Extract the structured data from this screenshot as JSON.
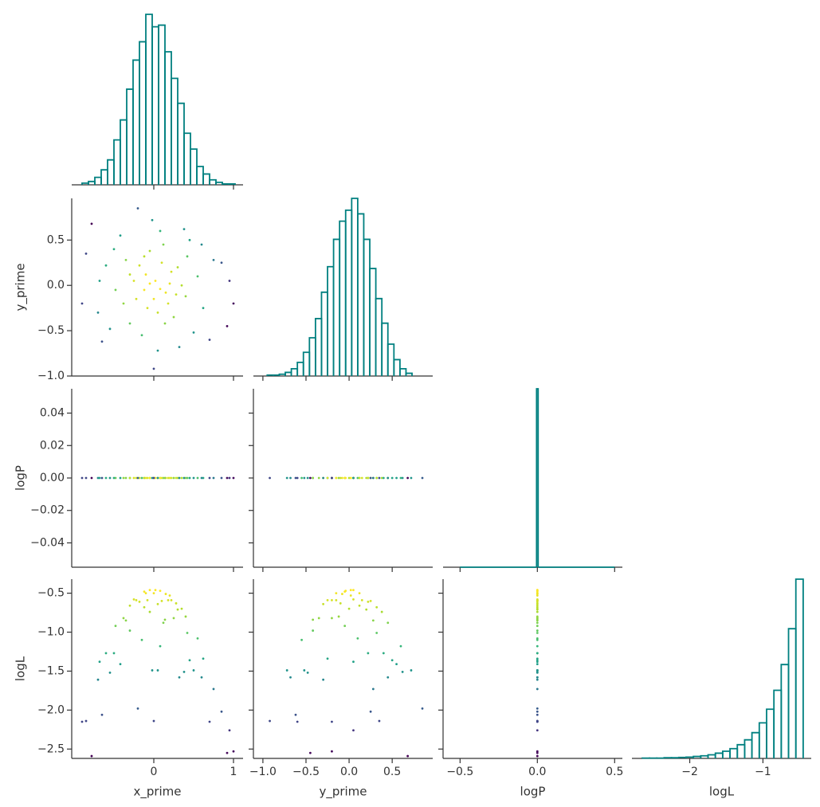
{
  "chart_data": {
    "type": "corner",
    "color": "#008080",
    "colormap": "viridis",
    "variables": [
      {
        "name": "x_prime",
        "values": [
          0.02,
          -0.1,
          0.15,
          -0.22,
          0.3,
          -0.35,
          0.05,
          0.4,
          -0.05,
          -0.48,
          0.55,
          0.12,
          -0.3,
          0.25,
          -0.6,
          0.62,
          -0.15,
          0.08,
          -0.7,
          0.75,
          -0.42,
          0.45,
          -0.55,
          0.5,
          0.2,
          -0.12,
          0.0,
          -0.25,
          0.35,
          0.1,
          -0.18,
          0.22,
          -0.08,
          0.18,
          -0.38,
          0.42,
          -0.02,
          0.05,
          -0.78,
          0.92,
          1.0,
          -0.85,
          0.85,
          -0.2,
          0.0,
          -0.65,
          0.7,
          -0.9,
          0.95,
          0.32,
          -0.05,
          0.08,
          -0.3,
          0.28,
          -0.12,
          0.14,
          0.6,
          -0.5,
          0.38,
          -0.68
        ],
        "xlim": [
          -1.03,
          1.12
        ],
        "xticks": [
          0,
          1
        ],
        "hist": {
          "bins": [
            -0.9,
            -0.82,
            -0.74,
            -0.66,
            -0.58,
            -0.5,
            -0.42,
            -0.34,
            -0.26,
            -0.18,
            -0.1,
            -0.02,
            0.06,
            0.14,
            0.22,
            0.3,
            0.38,
            0.46,
            0.54,
            0.62,
            0.7,
            0.78,
            0.86,
            0.94,
            1.02
          ],
          "counts": [
            2,
            4,
            9,
            18,
            30,
            54,
            78,
            115,
            150,
            172,
            205,
            190,
            192,
            160,
            128,
            98,
            62,
            43,
            22,
            13,
            6,
            3,
            1,
            1
          ]
        }
      },
      {
        "name": "y_prime",
        "values": [
          0.05,
          0.12,
          -0.08,
          -0.15,
          0.2,
          0.28,
          -0.3,
          -0.12,
          0.38,
          -0.05,
          0.1,
          0.45,
          -0.42,
          -0.35,
          0.22,
          -0.25,
          -0.55,
          0.6,
          -0.3,
          0.28,
          0.55,
          0.5,
          -0.48,
          -0.52,
          0.02,
          -0.05,
          -0.15,
          0.05,
          0.0,
          0.25,
          0.22,
          0.15,
          -0.25,
          -0.2,
          -0.2,
          0.32,
          0.72,
          -0.72,
          0.68,
          -0.45,
          -0.2,
          0.35,
          0.25,
          0.85,
          -0.92,
          -0.62,
          -0.6,
          -0.2,
          0.05,
          -0.68,
          0.02,
          -0.04,
          0.12,
          -0.1,
          0.32,
          -0.42,
          0.45,
          0.4,
          0.62,
          0.05
        ],
        "xlim": [
          -1.11,
          0.97
        ],
        "xticks": [
          {
            "value": -1.0,
            "label": "−1.0"
          },
          {
            "value": -0.5,
            "label": "−0.5"
          },
          {
            "value": 0,
            "label": "0.0"
          },
          {
            "value": 0.5,
            "label": "0.5"
          }
        ],
        "ylim": [
          -1.0,
          0.96
        ],
        "yticks": [
          {
            "value": -1.0,
            "label": "−1.0"
          },
          {
            "value": -0.5,
            "label": "−0.5"
          },
          {
            "value": 0,
            "label": "0.0"
          },
          {
            "value": 0.5,
            "label": "0.5"
          }
        ],
        "hist": {
          "bins": [
            -0.95,
            -0.88,
            -0.81,
            -0.74,
            -0.67,
            -0.6,
            -0.53,
            -0.46,
            -0.39,
            -0.32,
            -0.25,
            -0.18,
            -0.11,
            -0.04,
            0.03,
            0.1,
            0.17,
            0.24,
            0.31,
            0.38,
            0.45,
            0.52,
            0.59,
            0.66,
            0.73
          ],
          "counts": [
            1,
            1,
            2,
            4,
            8,
            15,
            26,
            42,
            63,
            92,
            120,
            150,
            170,
            182,
            195,
            178,
            150,
            118,
            85,
            58,
            35,
            18,
            8,
            3
          ]
        }
      },
      {
        "name": "logP",
        "values": [
          0,
          0,
          0,
          0,
          0,
          0,
          0,
          0,
          0,
          0,
          0,
          0,
          0,
          0,
          0,
          0,
          0,
          0,
          0,
          0,
          0,
          0,
          0,
          0,
          0,
          0,
          0,
          0,
          0,
          0,
          0,
          0,
          0,
          0,
          0,
          0,
          0,
          0,
          0,
          0,
          0,
          0,
          0,
          0,
          0,
          0,
          0,
          0,
          0,
          0,
          0,
          0,
          0,
          0,
          0,
          0,
          0,
          0,
          0,
          0
        ],
        "xlim": [
          -0.61,
          0.55
        ],
        "xticks": [
          {
            "value": -0.5,
            "label": "−0.5"
          },
          {
            "value": 0,
            "label": "0.0"
          },
          {
            "value": 0.5,
            "label": "0.5"
          }
        ],
        "ylim": [
          -0.055,
          0.055
        ],
        "yticks": [
          {
            "value": -0.04,
            "label": "−0.04"
          },
          {
            "value": -0.02,
            "label": "−0.02"
          },
          {
            "value": 0,
            "label": "0.00"
          },
          {
            "value": 0.02,
            "label": "0.02"
          },
          {
            "value": 0.04,
            "label": "0.04"
          }
        ],
        "hist": {
          "bins": [
            -0.5,
            -0.005,
            0.005,
            0.5
          ],
          "counts": [
            0,
            2000,
            0
          ]
        }
      },
      {
        "name": "logL",
        "values": [
          -0.46,
          -0.5,
          -0.51,
          -0.59,
          -0.71,
          -0.85,
          -0.64,
          -0.8,
          -0.74,
          -0.92,
          -1.08,
          -0.88,
          -0.98,
          -0.82,
          -1.27,
          -1.34,
          -1.1,
          -1.18,
          -1.61,
          -1.73,
          -1.41,
          -1.36,
          -1.52,
          -1.49,
          -0.53,
          -0.48,
          -0.5,
          -0.58,
          -0.7,
          -0.6,
          -0.61,
          -0.59,
          -0.59,
          -0.59,
          -0.82,
          -1.01,
          -1.49,
          -1.49,
          -2.59,
          -2.55,
          -2.53,
          -2.14,
          -2.02,
          -1.98,
          -2.14,
          -2.06,
          -2.15,
          -2.15,
          -2.26,
          -1.58,
          -0.46,
          -0.47,
          -0.66,
          -0.63,
          -0.68,
          -0.84,
          -1.58,
          -1.27,
          -1.51,
          -1.38
        ],
        "xlim": [
          -2.79,
          -0.34
        ],
        "xticks": [
          {
            "value": -2,
            "label": "−2"
          },
          {
            "value": -1,
            "label": "−1"
          }
        ],
        "ylim": [
          -2.62,
          -0.32
        ],
        "yticks": [
          {
            "value": -2.5,
            "label": "−2.5"
          },
          {
            "value": -2.0,
            "label": "−2.0"
          },
          {
            "value": -1.5,
            "label": "−1.5"
          },
          {
            "value": -1.0,
            "label": "−1.0"
          },
          {
            "value": -0.5,
            "label": "−0.5"
          }
        ],
        "hist": {
          "bins": [
            -2.65,
            -2.55,
            -2.45,
            -2.35,
            -2.25,
            -2.15,
            -2.05,
            -1.95,
            -1.85,
            -1.75,
            -1.65,
            -1.55,
            -1.45,
            -1.35,
            -1.25,
            -1.15,
            -1.05,
            -0.95,
            -0.85,
            -0.75,
            -0.65,
            -0.55,
            -0.45
          ],
          "counts": [
            1,
            1,
            1,
            2,
            2,
            3,
            4,
            6,
            8,
            11,
            16,
            22,
            30,
            42,
            57,
            79,
            109,
            151,
            209,
            288,
            398,
            550
          ]
        }
      }
    ]
  }
}
